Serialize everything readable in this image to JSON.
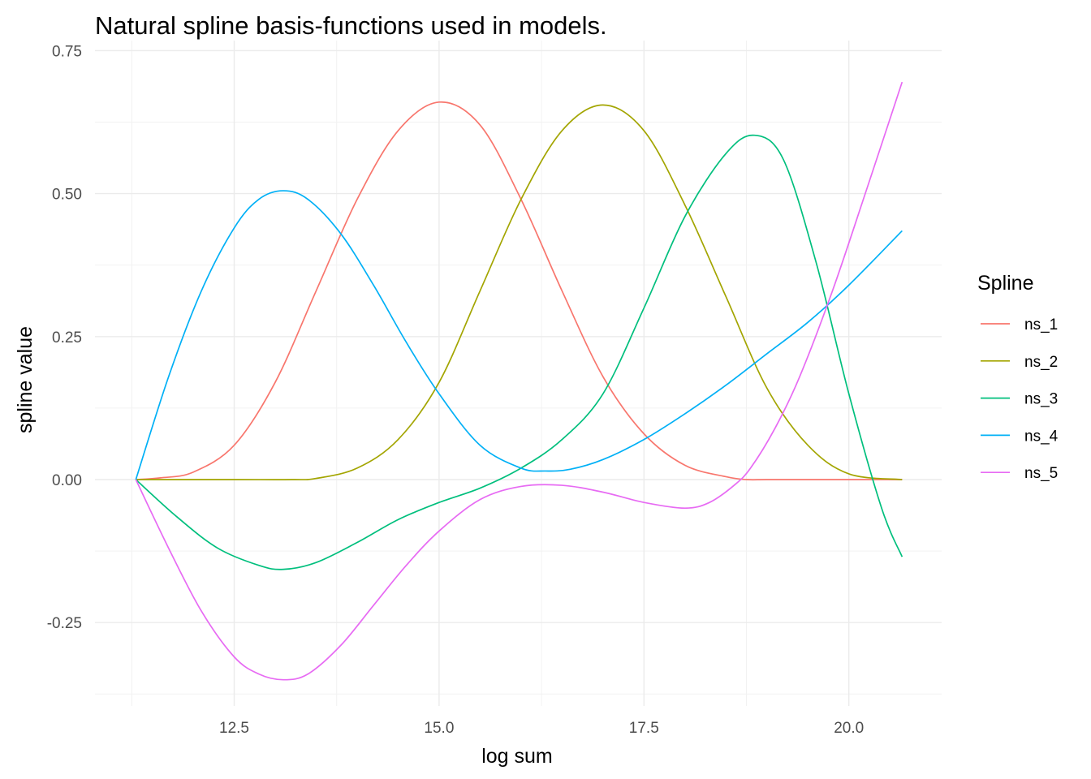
{
  "chart_data": {
    "type": "line",
    "title": "Natural spline basis-functions used in models.",
    "xlabel": "log sum",
    "ylabel": "spline value",
    "xlim": [
      10.8,
      21.1
    ],
    "ylim": [
      -0.375,
      0.75
    ],
    "x_ticks": [
      12.5,
      15.0,
      17.5,
      20.0
    ],
    "x_tick_labels": [
      "12.5",
      "15.0",
      "17.5",
      "20.0"
    ],
    "y_ticks": [
      -0.25,
      0.0,
      0.25,
      0.5,
      0.75
    ],
    "y_tick_labels": [
      "-0.25",
      "0.00",
      "0.25",
      "0.50",
      "0.75"
    ],
    "grid": true,
    "legend": {
      "title": "Spline",
      "position": "right"
    },
    "series": [
      {
        "name": "ns_1",
        "color": "#F8766D",
        "x": [
          11.3,
          11.6,
          12.0,
          12.5,
          13.0,
          13.5,
          14.0,
          14.5,
          15.0,
          15.5,
          16.0,
          16.5,
          17.0,
          17.5,
          18.0,
          18.5,
          18.75,
          19.0,
          19.5,
          20.0,
          20.65
        ],
        "y": [
          0.0,
          0.003,
          0.013,
          0.06,
          0.17,
          0.33,
          0.49,
          0.61,
          0.66,
          0.62,
          0.49,
          0.33,
          0.18,
          0.08,
          0.025,
          0.005,
          0.0,
          0.0,
          0.0,
          0.0,
          0.0
        ]
      },
      {
        "name": "ns_2",
        "color": "#A3A500",
        "x": [
          11.3,
          12.5,
          13.2,
          13.5,
          14.0,
          14.5,
          15.0,
          15.5,
          16.0,
          16.5,
          17.0,
          17.5,
          18.0,
          18.5,
          19.0,
          19.5,
          20.0,
          20.65
        ],
        "y": [
          0.0,
          0.0,
          0.0,
          0.002,
          0.02,
          0.07,
          0.17,
          0.33,
          0.49,
          0.61,
          0.655,
          0.61,
          0.48,
          0.32,
          0.16,
          0.06,
          0.01,
          0.0
        ]
      },
      {
        "name": "ns_3",
        "color": "#00BF7D",
        "x": [
          11.3,
          11.8,
          12.3,
          12.8,
          13.1,
          13.5,
          14.0,
          14.5,
          15.0,
          15.5,
          16.0,
          16.5,
          17.0,
          17.5,
          18.0,
          18.5,
          18.85,
          19.2,
          19.6,
          20.0,
          20.4,
          20.65
        ],
        "y": [
          0.0,
          -0.065,
          -0.12,
          -0.15,
          -0.157,
          -0.145,
          -0.11,
          -0.07,
          -0.04,
          -0.015,
          0.02,
          0.07,
          0.15,
          0.3,
          0.46,
          0.57,
          0.602,
          0.56,
          0.38,
          0.15,
          -0.05,
          -0.135
        ]
      },
      {
        "name": "ns_4",
        "color": "#00B0F6",
        "x": [
          11.3,
          11.7,
          12.1,
          12.5,
          12.8,
          13.1,
          13.4,
          13.8,
          14.2,
          14.6,
          15.0,
          15.5,
          16.0,
          16.3,
          16.6,
          17.0,
          17.5,
          18.0,
          18.5,
          19.0,
          19.5,
          20.0,
          20.65
        ],
        "y": [
          0.0,
          0.18,
          0.33,
          0.44,
          0.49,
          0.505,
          0.49,
          0.43,
          0.34,
          0.24,
          0.15,
          0.06,
          0.02,
          0.015,
          0.018,
          0.035,
          0.07,
          0.115,
          0.165,
          0.22,
          0.275,
          0.34,
          0.435
        ]
      },
      {
        "name": "ns_5",
        "color": "#E76BF3",
        "x": [
          11.3,
          11.7,
          12.1,
          12.5,
          12.8,
          13.1,
          13.4,
          13.8,
          14.2,
          14.6,
          15.0,
          15.5,
          16.0,
          16.5,
          17.0,
          17.5,
          18.0,
          18.3,
          18.6,
          18.8,
          19.1,
          19.4,
          19.8,
          20.2,
          20.65
        ],
        "y": [
          0.0,
          -0.12,
          -0.23,
          -0.31,
          -0.34,
          -0.35,
          -0.34,
          -0.29,
          -0.22,
          -0.15,
          -0.09,
          -0.035,
          -0.012,
          -0.01,
          -0.022,
          -0.04,
          -0.05,
          -0.04,
          -0.01,
          0.02,
          0.09,
          0.18,
          0.33,
          0.5,
          0.695
        ]
      }
    ]
  }
}
